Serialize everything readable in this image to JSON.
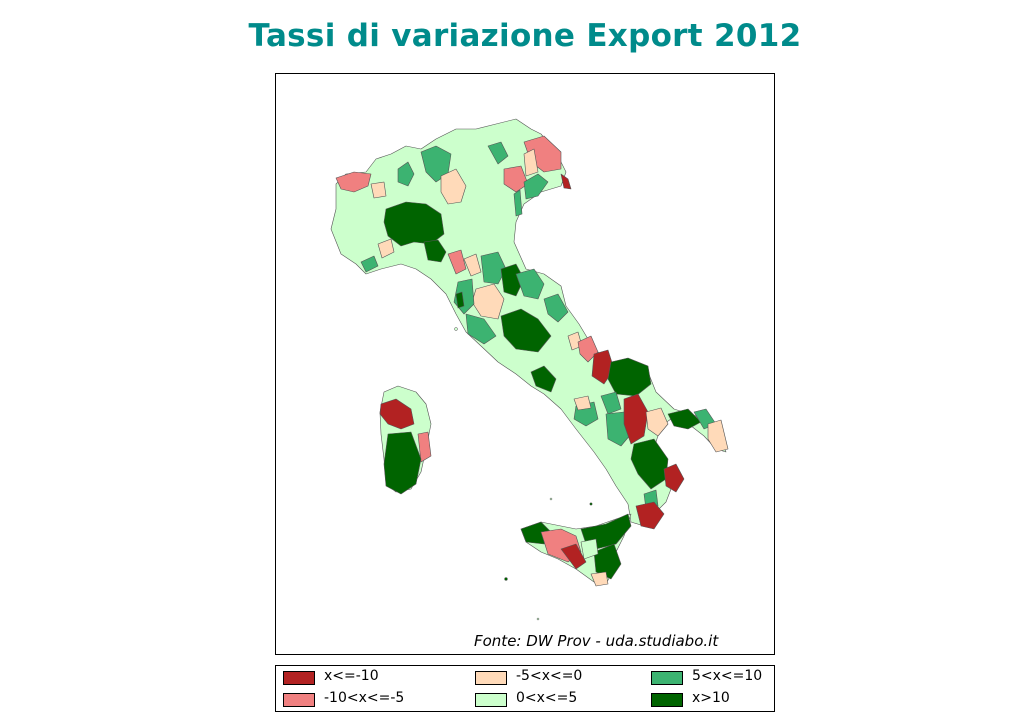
{
  "title": "Tassi di variazione Export 2012",
  "source": "Fonte: DW Prov - uda.studiabo.it",
  "colors": {
    "title": "#008b8b",
    "class_1": "#b22222",
    "class_2": "#f08080",
    "class_3": "#ffdab9",
    "class_4": "#ccffcc",
    "class_5": "#3cb371",
    "class_6": "#006400",
    "border": "#555555"
  },
  "legend": {
    "items": [
      {
        "label": "x<=-10",
        "color": "#b22222"
      },
      {
        "label": "-10<x<=-5",
        "color": "#f08080"
      },
      {
        "label": "-5<x<=0",
        "color": "#ffdab9"
      },
      {
        "label": "0<x<=5",
        "color": "#ccffcc"
      },
      {
        "label": "5<x<=10",
        "color": "#3cb371"
      },
      {
        "label": "x>10",
        "color": "#006400"
      }
    ]
  }
}
